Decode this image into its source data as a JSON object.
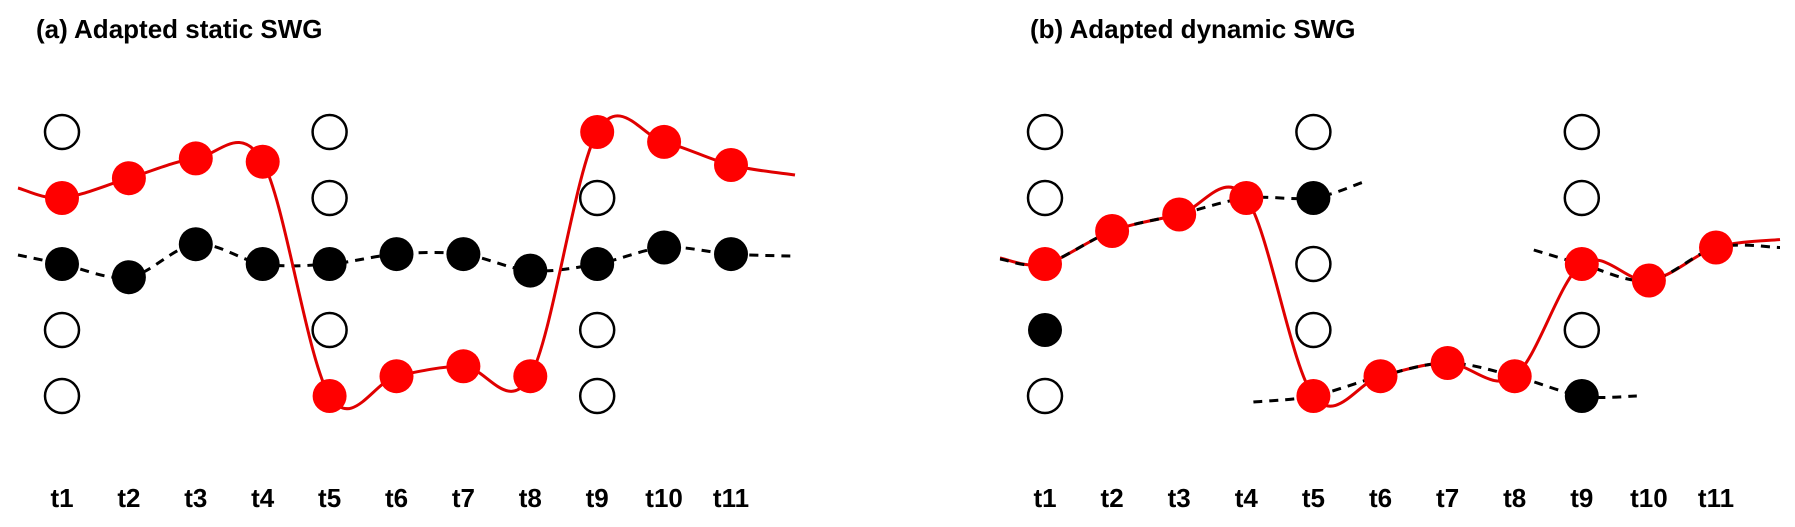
{
  "panels": [
    {
      "title": "(a) Adapted static SWG",
      "x_ticks": [
        "t1",
        "t2",
        "t3",
        "t4",
        "t5",
        "t6",
        "t7",
        "t8",
        "t9",
        "t10",
        "t11"
      ],
      "open_nodes": [
        {
          "t": 1,
          "level": 0
        },
        {
          "t": 1,
          "level": 3
        },
        {
          "t": 1,
          "level": 4
        },
        {
          "t": 5,
          "level": 0
        },
        {
          "t": 5,
          "level": 1
        },
        {
          "t": 5,
          "level": 3
        },
        {
          "t": 9,
          "level": 1
        },
        {
          "t": 9,
          "level": 3
        },
        {
          "t": 9,
          "level": 4
        }
      ],
      "black_path": [
        2.0,
        2.2,
        1.7,
        2.0,
        2.0,
        1.85,
        1.85,
        2.1,
        2.0,
        1.75,
        1.85
      ],
      "red_path": [
        1.0,
        0.7,
        0.4,
        0.45,
        4.0,
        3.7,
        3.55,
        3.7,
        0.0,
        0.15,
        0.5
      ],
      "black_segments": [
        [
          1,
          11
        ]
      ],
      "red_segments": [
        [
          1,
          4
        ],
        [
          4,
          5
        ],
        [
          5,
          8
        ],
        [
          8,
          9
        ],
        [
          9,
          11
        ]
      ]
    },
    {
      "title": "(b) Adapted dynamic SWG",
      "x_ticks": [
        "t1",
        "t2",
        "t3",
        "t4",
        "t5",
        "t6",
        "t7",
        "t8",
        "t9",
        "t10",
        "t11"
      ],
      "open_nodes": [
        {
          "t": 1,
          "level": 0
        },
        {
          "t": 1,
          "level": 1
        },
        {
          "t": 1,
          "level": 4
        },
        {
          "t": 5,
          "level": 0
        },
        {
          "t": 5,
          "level": 2
        },
        {
          "t": 5,
          "level": 3
        },
        {
          "t": 9,
          "level": 0
        },
        {
          "t": 9,
          "level": 1
        },
        {
          "t": 9,
          "level": 3
        }
      ],
      "black_nodes": [
        {
          "t": 1,
          "level": 3
        },
        {
          "t": 5,
          "level": 1
        },
        {
          "t": 9,
          "level": 4
        }
      ],
      "red_nodes": [
        {
          "t": 1,
          "level": 2
        },
        {
          "t": 2,
          "level": 1.5
        },
        {
          "t": 3,
          "level": 1.25
        },
        {
          "t": 4,
          "level": 1.0
        },
        {
          "t": 5,
          "level": 4.0
        },
        {
          "t": 6,
          "level": 3.7
        },
        {
          "t": 7,
          "level": 3.5
        },
        {
          "t": 8,
          "level": 3.7
        },
        {
          "t": 9,
          "level": 2.0
        },
        {
          "t": 10,
          "level": 2.25
        },
        {
          "t": 11,
          "level": 1.75
        }
      ],
      "dashed_segments": [
        [
          1,
          5
        ],
        [
          5,
          9
        ],
        [
          9,
          11
        ]
      ]
    }
  ],
  "colors": {
    "red": "#ff0000",
    "black": "#000000",
    "red_line": "#e00000"
  }
}
